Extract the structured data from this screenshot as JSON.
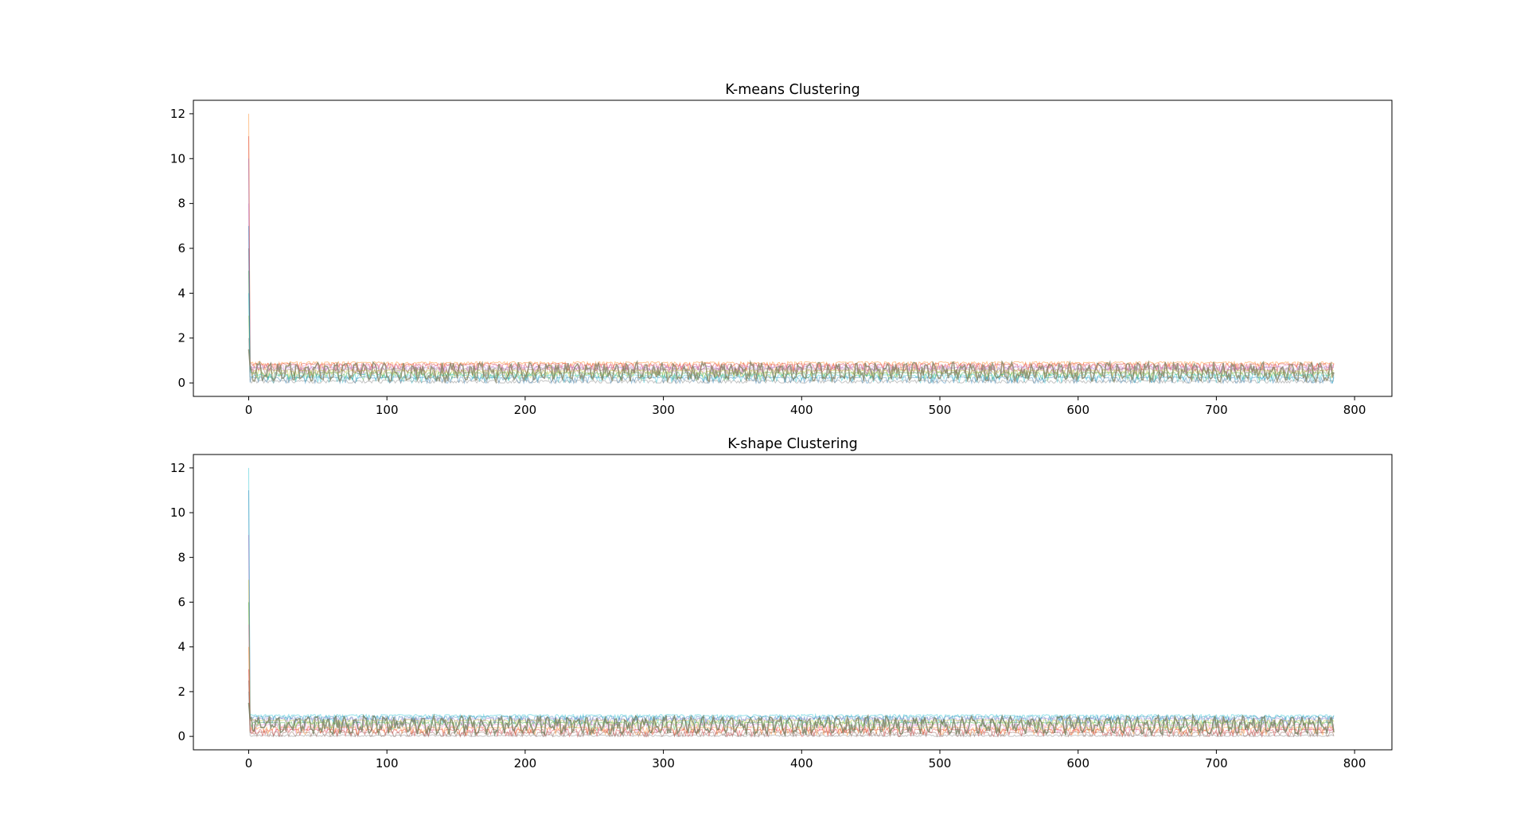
{
  "chart_data": [
    {
      "type": "line",
      "title": "K-means Clustering",
      "xlabel": "",
      "ylabel": "",
      "xlim": [
        -40,
        827
      ],
      "ylim": [
        -0.6,
        12.6
      ],
      "x_ticks": [
        0,
        100,
        200,
        300,
        400,
        500,
        600,
        700,
        800
      ],
      "y_ticks": [
        0,
        2,
        4,
        6,
        8,
        10,
        12
      ],
      "x_tick_labels": [
        "0",
        "100",
        "200",
        "300",
        "400",
        "500",
        "600",
        "700",
        "800"
      ],
      "y_tick_labels": [
        "0",
        "2",
        "4",
        "6",
        "8",
        "10",
        "12"
      ],
      "grid": false,
      "n_points": 786,
      "series_summary": "many overlapping faint series; each starts with a spike at x=0 (up to about 12) then oscillates between 0 and 1 until x≈785",
      "spike_peaks": [
        12.0,
        11.0,
        10.0,
        8.0,
        6.0,
        3.0
      ],
      "series": [
        {
          "color": "#ff7f0e",
          "offset": 0.92,
          "peak": 12.0
        },
        {
          "color": "#d62728",
          "offset": 0.85,
          "peak": 11.0
        },
        {
          "color": "#e377c2",
          "offset": 0.78,
          "peak": 8.0
        },
        {
          "color": "#9467bd",
          "offset": 0.7,
          "peak": 10.0
        },
        {
          "color": "#8c564b",
          "offset": 0.62,
          "peak": 6.0
        },
        {
          "color": "#bcbd22",
          "offset": 0.55,
          "peak": 3.0
        },
        {
          "color": "#2ca02c",
          "offset": 0.45,
          "peak": 5.0
        },
        {
          "color": "#17becf",
          "offset": 0.35,
          "peak": 4.0
        },
        {
          "color": "#1f77b4",
          "offset": 0.25,
          "peak": 7.0
        },
        {
          "color": "#7f7f7f",
          "offset": 0.1,
          "peak": 2.0
        },
        {
          "color": "#808060",
          "offset": 0.0,
          "peak": 1.5,
          "dense": true
        }
      ]
    },
    {
      "type": "line",
      "title": "K-shape Clustering",
      "xlabel": "",
      "ylabel": "",
      "xlim": [
        -40,
        827
      ],
      "ylim": [
        -0.6,
        12.6
      ],
      "x_ticks": [
        0,
        100,
        200,
        300,
        400,
        500,
        600,
        700,
        800
      ],
      "y_ticks": [
        0,
        2,
        4,
        6,
        8,
        10,
        12
      ],
      "x_tick_labels": [
        "0",
        "100",
        "200",
        "300",
        "400",
        "500",
        "600",
        "700",
        "800"
      ],
      "y_tick_labels": [
        "0",
        "2",
        "4",
        "6",
        "8",
        "10",
        "12"
      ],
      "grid": false,
      "n_points": 786,
      "series_summary": "many overlapping faint series; each starts with a spike at x=0 (up to about 12) then oscillates between 0 and 1 until x≈785",
      "spike_peaks": [
        12.0,
        11.0,
        9.0,
        7.0,
        5.0
      ],
      "series": [
        {
          "color": "#17becf",
          "offset": 0.95,
          "peak": 12.0
        },
        {
          "color": "#1f77b4",
          "offset": 0.88,
          "peak": 11.0
        },
        {
          "color": "#9467bd",
          "offset": 0.8,
          "peak": 9.0
        },
        {
          "color": "#bcbd22",
          "offset": 0.72,
          "peak": 7.0
        },
        {
          "color": "#2ca02c",
          "offset": 0.62,
          "peak": 6.0
        },
        {
          "color": "#e377c2",
          "offset": 0.52,
          "peak": 5.0
        },
        {
          "color": "#ff7f0e",
          "offset": 0.4,
          "peak": 4.0
        },
        {
          "color": "#d62728",
          "offset": 0.3,
          "peak": 3.0
        },
        {
          "color": "#8c564b",
          "offset": 0.18,
          "peak": 2.5
        },
        {
          "color": "#7f7f7f",
          "offset": 0.05,
          "peak": 2.0
        },
        {
          "color": "#6f7a5a",
          "offset": 0.0,
          "peak": 1.5,
          "dense": true
        }
      ]
    }
  ]
}
